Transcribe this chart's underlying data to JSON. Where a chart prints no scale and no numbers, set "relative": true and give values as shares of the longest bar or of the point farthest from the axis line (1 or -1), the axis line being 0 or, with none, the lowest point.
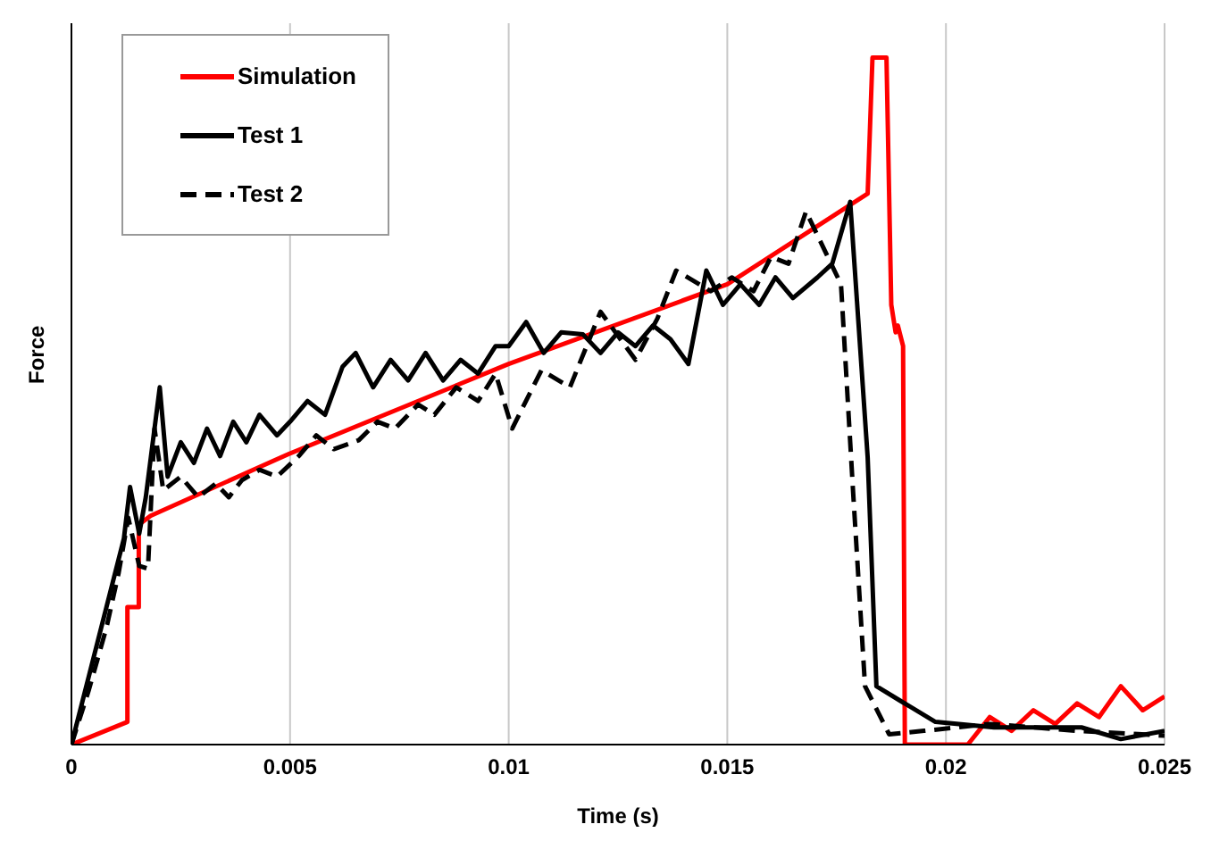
{
  "chart_data": {
    "type": "line",
    "xlabel": "Time (s)",
    "ylabel": "Force",
    "relative": true,
    "xlim": [
      0,
      0.025
    ],
    "xticks": [
      0,
      0.005,
      0.01,
      0.015,
      0.02,
      0.025
    ],
    "grid": "x",
    "legend": "top left",
    "tick_labels": "x",
    "marker": "none",
    "series": [
      {
        "name": "Simulation",
        "color": "#ff0000",
        "line_style": "solid",
        "x": [
          0,
          0.00128,
          0.00128,
          0.00154,
          0.00154,
          0.00181,
          0.00497,
          0.01,
          0.015,
          0.01821,
          0.01832,
          0.01864,
          0.01875,
          0.01885,
          0.0189,
          0.01902,
          0.01906,
          0.0205,
          0.021,
          0.0215,
          0.022,
          0.0225,
          0.023,
          0.0235,
          0.024,
          0.0245,
          0.025
        ],
        "values": [
          0,
          0.033,
          0.2,
          0.2,
          0.32,
          0.333,
          0.423,
          0.554,
          0.67,
          0.802,
          1,
          1,
          0.64,
          0.6,
          0.61,
          0.58,
          0,
          0,
          0.04,
          0.02,
          0.05,
          0.03,
          0.06,
          0.04,
          0.085,
          0.05,
          0.07
        ]
      },
      {
        "name": "Test 1",
        "color": "#000000",
        "line_style": "solid",
        "x": [
          0,
          0.0004,
          0.0008,
          0.0012,
          0.00134,
          0.00155,
          0.0017,
          0.00202,
          0.0022,
          0.0025,
          0.0028,
          0.0031,
          0.0034,
          0.0037,
          0.004,
          0.0043,
          0.0047,
          0.005,
          0.0054,
          0.0058,
          0.0062,
          0.0065,
          0.0069,
          0.0073,
          0.0077,
          0.0081,
          0.0085,
          0.0089,
          0.0093,
          0.0097,
          0.01,
          0.0104,
          0.0108,
          0.0112,
          0.0117,
          0.0121,
          0.0125,
          0.0129,
          0.0133,
          0.0137,
          0.01411,
          0.01452,
          0.0149,
          0.0153,
          0.01573,
          0.0161,
          0.0165,
          0.01706,
          0.0174,
          0.01781,
          0.01821,
          0.01841,
          0.01895,
          0.01976,
          0.0211,
          0.0231,
          0.024,
          0.025
        ],
        "values": [
          0,
          0.1,
          0.2,
          0.3,
          0.375,
          0.307,
          0.36,
          0.52,
          0.39,
          0.44,
          0.41,
          0.46,
          0.42,
          0.47,
          0.44,
          0.48,
          0.45,
          0.47,
          0.5,
          0.48,
          0.55,
          0.57,
          0.52,
          0.56,
          0.53,
          0.57,
          0.53,
          0.56,
          0.54,
          0.58,
          0.58,
          0.615,
          0.57,
          0.6,
          0.597,
          0.57,
          0.6,
          0.58,
          0.61,
          0.59,
          0.554,
          0.69,
          0.64,
          0.67,
          0.64,
          0.68,
          0.65,
          0.68,
          0.7,
          0.79,
          0.418,
          0.085,
          0.064,
          0.033,
          0.025,
          0.025,
          0.008,
          0.02
        ]
      },
      {
        "name": "Test 2",
        "color": "#000000",
        "line_style": "dashed",
        "x": [
          0,
          0.0004,
          0.0008,
          0.00108,
          0.0013,
          0.00155,
          0.00175,
          0.0019,
          0.0021,
          0.0025,
          0.0029,
          0.0033,
          0.0036,
          0.0039,
          0.0043,
          0.0047,
          0.0052,
          0.0056,
          0.006,
          0.00657,
          0.007,
          0.0074,
          0.00793,
          0.0083,
          0.0088,
          0.0093,
          0.0097,
          0.01008,
          0.01075,
          0.0114,
          0.0121,
          0.0129,
          0.0134,
          0.01383,
          0.01462,
          0.0151,
          0.0156,
          0.016,
          0.0164,
          0.0168,
          0.0176,
          0.01787,
          0.01815,
          0.0187,
          0.0195,
          0.021,
          0.023,
          0.025
        ],
        "values": [
          0,
          0.08,
          0.17,
          0.25,
          0.33,
          0.26,
          0.256,
          0.46,
          0.37,
          0.39,
          0.36,
          0.38,
          0.36,
          0.385,
          0.4,
          0.39,
          0.42,
          0.45,
          0.43,
          0.443,
          0.47,
          0.46,
          0.495,
          0.48,
          0.52,
          0.5,
          0.54,
          0.46,
          0.545,
          0.52,
          0.63,
          0.56,
          0.62,
          0.69,
          0.66,
          0.68,
          0.66,
          0.71,
          0.7,
          0.776,
          0.67,
          0.375,
          0.085,
          0.015,
          0.02,
          0.03,
          0.02,
          0.013
        ]
      }
    ]
  }
}
